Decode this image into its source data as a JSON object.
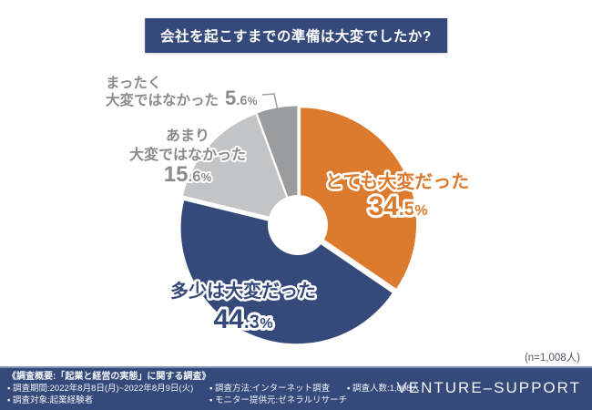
{
  "title": "会社を起こすまでの準備は大変でしたか?",
  "sample_note": "(n=1,008人)",
  "chart_data": {
    "type": "pie",
    "title": "会社を起こすまでの準備は大変でしたか?",
    "donut": true,
    "start_angle_deg": 0,
    "direction": "clockwise",
    "unit": "%",
    "n_total": "1,008",
    "slices": [
      {
        "label": "とても大変だった",
        "value": 34.5,
        "color": "#DC7A2D"
      },
      {
        "label": "多少は大変だった",
        "value": 44.3,
        "color": "#35497B"
      },
      {
        "label": "あまり大変ではなかった",
        "label_lines": [
          "あまり",
          "大変ではなかった"
        ],
        "value": 15.6,
        "color": "#C3C4C6"
      },
      {
        "label": "まったく大変ではなかった",
        "label_lines": [
          "まったく",
          "大変ではなかった"
        ],
        "value": 5.6,
        "color": "#9B9C9E"
      }
    ]
  },
  "footer": {
    "survey_title": "《調査概要:「起業と経営の実態」に関する調査》",
    "items_left": [
      "▪ 調査期間:2022年8月8日(月)~2022年8月9日(火)",
      "▪ 調査対象:起業経験者"
    ],
    "items_middle": [
      "▪ 調査方法:インターネット調査",
      "▪ モニター提供元:ゼネラルリサーチ"
    ],
    "items_right": [
      "▪ 調査人数:1,008人"
    ],
    "logo": "VENTURE–SUPPORT"
  },
  "colors": {
    "navy": "#35497B",
    "orange": "#DC7A2D",
    "light_gray": "#C3C4C6",
    "dark_gray": "#9B9C9E",
    "label_gray": "#8A8A8A"
  }
}
